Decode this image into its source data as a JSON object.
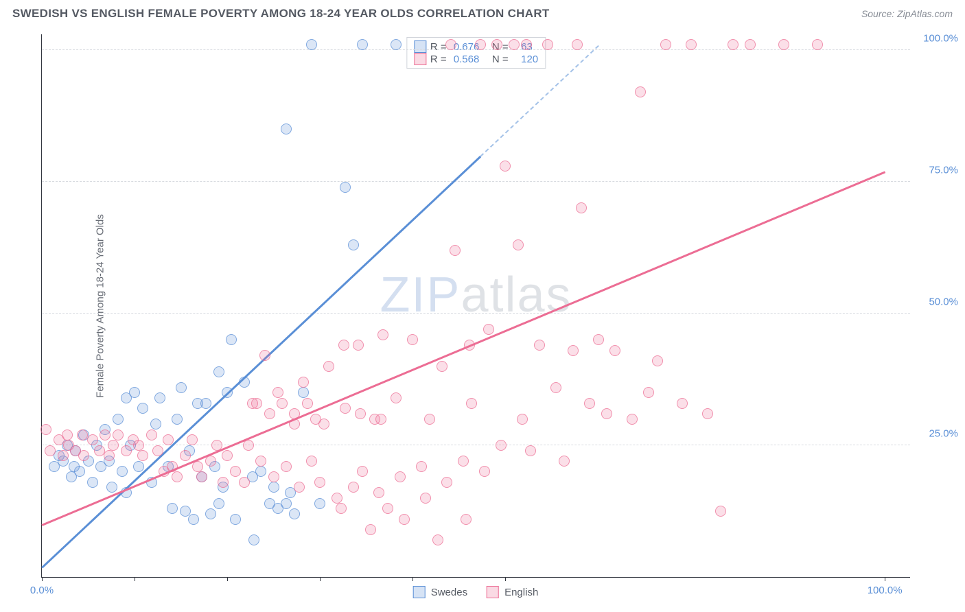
{
  "title": "SWEDISH VS ENGLISH FEMALE POVERTY AMONG 18-24 YEAR OLDS CORRELATION CHART",
  "source": "Source: ZipAtlas.com",
  "ylabel": "Female Poverty Among 18-24 Year Olds",
  "watermark": {
    "z": "ZIP",
    "rest": "atlas"
  },
  "chart": {
    "type": "scatter",
    "xlim": [
      0,
      103
    ],
    "ylim": [
      0,
      103
    ],
    "xtick_positions": [
      0,
      11,
      22,
      33,
      44,
      55,
      100
    ],
    "xtick_labels": {
      "0": "0.0%",
      "100": "100.0%"
    },
    "ytick_positions": [
      25,
      50,
      75,
      100
    ],
    "ytick_labels": [
      "25.0%",
      "50.0%",
      "75.0%",
      "100.0%"
    ],
    "grid_color": "#d8dbe0",
    "axis_color": "#333740",
    "tick_label_color": "#5a8fd6",
    "background_color": "#ffffff",
    "marker_radius": 8,
    "marker_opacity_fill": 0.22,
    "marker_opacity_stroke": 0.7,
    "series": [
      {
        "name": "Swedes",
        "color": "#5a8fd6",
        "R": "0.676",
        "N": "63",
        "trend": {
          "x1": 0,
          "y1": 2,
          "x2": 52,
          "y2": 80,
          "dash_to_x": 66,
          "dash_to_y": 101
        },
        "points": [
          [
            1.5,
            21
          ],
          [
            2,
            23
          ],
          [
            2.5,
            22
          ],
          [
            3,
            25
          ],
          [
            3.5,
            19
          ],
          [
            3.8,
            21
          ],
          [
            4,
            24
          ],
          [
            4.5,
            20
          ],
          [
            5,
            27
          ],
          [
            5.5,
            22
          ],
          [
            6,
            18
          ],
          [
            6.5,
            25
          ],
          [
            7,
            21
          ],
          [
            7.5,
            28
          ],
          [
            8,
            22
          ],
          [
            8.3,
            17
          ],
          [
            9,
            30
          ],
          [
            9.5,
            20
          ],
          [
            10,
            16
          ],
          [
            10.5,
            25
          ],
          [
            11,
            35
          ],
          [
            11.5,
            21
          ],
          [
            12,
            32
          ],
          [
            13,
            18
          ],
          [
            13.5,
            29
          ],
          [
            14,
            34
          ],
          [
            15,
            21
          ],
          [
            15.5,
            13
          ],
          [
            16,
            30
          ],
          [
            17,
            12.5
          ],
          [
            17.5,
            24
          ],
          [
            18,
            11
          ],
          [
            18.5,
            33
          ],
          [
            19,
            19
          ],
          [
            20,
            12
          ],
          [
            20.5,
            21
          ],
          [
            21,
            14
          ],
          [
            21.5,
            17
          ],
          [
            22,
            35
          ],
          [
            23,
            11
          ],
          [
            24,
            37
          ],
          [
            25,
            19
          ],
          [
            25.2,
            7
          ],
          [
            26,
            20
          ],
          [
            27,
            14
          ],
          [
            27.5,
            17
          ],
          [
            28,
            13
          ],
          [
            29,
            14
          ],
          [
            29.5,
            16
          ],
          [
            30,
            12
          ],
          [
            31,
            35
          ],
          [
            33,
            14
          ],
          [
            22.5,
            45
          ],
          [
            29,
            85
          ],
          [
            32,
            101
          ],
          [
            36,
            74
          ],
          [
            37,
            63
          ],
          [
            38,
            101
          ],
          [
            42,
            101
          ],
          [
            21,
            39
          ],
          [
            19.5,
            33
          ],
          [
            16.5,
            36
          ],
          [
            10,
            34
          ]
        ]
      },
      {
        "name": "English",
        "color": "#ec6d94",
        "R": "0.568",
        "N": "120",
        "trend": {
          "x1": 0,
          "y1": 10,
          "x2": 100,
          "y2": 77
        },
        "points": [
          [
            0.5,
            28
          ],
          [
            1,
            24
          ],
          [
            2,
            26
          ],
          [
            2.5,
            23
          ],
          [
            3,
            27
          ],
          [
            3.2,
            25
          ],
          [
            4,
            24
          ],
          [
            4.8,
            27
          ],
          [
            5,
            23
          ],
          [
            6,
            26
          ],
          [
            6.8,
            24
          ],
          [
            7.5,
            27
          ],
          [
            8,
            23
          ],
          [
            8.5,
            25
          ],
          [
            9,
            27
          ],
          [
            10,
            24
          ],
          [
            10.8,
            26
          ],
          [
            11.5,
            25
          ],
          [
            12,
            23
          ],
          [
            13,
            27
          ],
          [
            13.8,
            24
          ],
          [
            14.5,
            20
          ],
          [
            15,
            26
          ],
          [
            15.5,
            21
          ],
          [
            16,
            19
          ],
          [
            17,
            23
          ],
          [
            17.8,
            26
          ],
          [
            18.5,
            21
          ],
          [
            19,
            19
          ],
          [
            20,
            22
          ],
          [
            20.8,
            25
          ],
          [
            21.5,
            18
          ],
          [
            22,
            23
          ],
          [
            23,
            20
          ],
          [
            24,
            18
          ],
          [
            24.5,
            25
          ],
          [
            25,
            33
          ],
          [
            26,
            22
          ],
          [
            27,
            31
          ],
          [
            27.5,
            19
          ],
          [
            28,
            35
          ],
          [
            29,
            21
          ],
          [
            30,
            29
          ],
          [
            30.5,
            17
          ],
          [
            31,
            37
          ],
          [
            32,
            22
          ],
          [
            32.5,
            30
          ],
          [
            33,
            18
          ],
          [
            34,
            40
          ],
          [
            35,
            15
          ],
          [
            35.5,
            13
          ],
          [
            36,
            32
          ],
          [
            37,
            17
          ],
          [
            37.5,
            44
          ],
          [
            38,
            20
          ],
          [
            39,
            9
          ],
          [
            39.5,
            30
          ],
          [
            40,
            16
          ],
          [
            40.5,
            46
          ],
          [
            41,
            13
          ],
          [
            42,
            34
          ],
          [
            42.5,
            19
          ],
          [
            43,
            11
          ],
          [
            44,
            45
          ],
          [
            45,
            21
          ],
          [
            45.5,
            15
          ],
          [
            46,
            30
          ],
          [
            47,
            7
          ],
          [
            47.5,
            40
          ],
          [
            48,
            18
          ],
          [
            48.5,
            101
          ],
          [
            49,
            62
          ],
          [
            50,
            22
          ],
          [
            50.3,
            11
          ],
          [
            50.7,
            44
          ],
          [
            51,
            33
          ],
          [
            52,
            101
          ],
          [
            52.5,
            20
          ],
          [
            53,
            47
          ],
          [
            54,
            101
          ],
          [
            54.5,
            25
          ],
          [
            55,
            78
          ],
          [
            56,
            101
          ],
          [
            56.5,
            63
          ],
          [
            57,
            30
          ],
          [
            57.5,
            101
          ],
          [
            58,
            24
          ],
          [
            59,
            44
          ],
          [
            60,
            101
          ],
          [
            61,
            36
          ],
          [
            62,
            22
          ],
          [
            63,
            43
          ],
          [
            63.5,
            101
          ],
          [
            64,
            70
          ],
          [
            65,
            33
          ],
          [
            66,
            45
          ],
          [
            67,
            31
          ],
          [
            68,
            43
          ],
          [
            70,
            30
          ],
          [
            71,
            92
          ],
          [
            72,
            35
          ],
          [
            73,
            41
          ],
          [
            74,
            101
          ],
          [
            76,
            33
          ],
          [
            77,
            101
          ],
          [
            79,
            31
          ],
          [
            80.5,
            12.5
          ],
          [
            82,
            101
          ],
          [
            84,
            101
          ],
          [
            88,
            101
          ],
          [
            92,
            101
          ],
          [
            25.5,
            33
          ],
          [
            26.5,
            42
          ],
          [
            28.5,
            33
          ],
          [
            30,
            31
          ],
          [
            31.5,
            33
          ],
          [
            33.5,
            29
          ],
          [
            35.8,
            44
          ],
          [
            37.8,
            31
          ],
          [
            40.2,
            30
          ]
        ]
      }
    ]
  },
  "legend": {
    "items": [
      {
        "label": "Swedes",
        "color": "#5a8fd6"
      },
      {
        "label": "English",
        "color": "#ec6d94"
      }
    ]
  }
}
